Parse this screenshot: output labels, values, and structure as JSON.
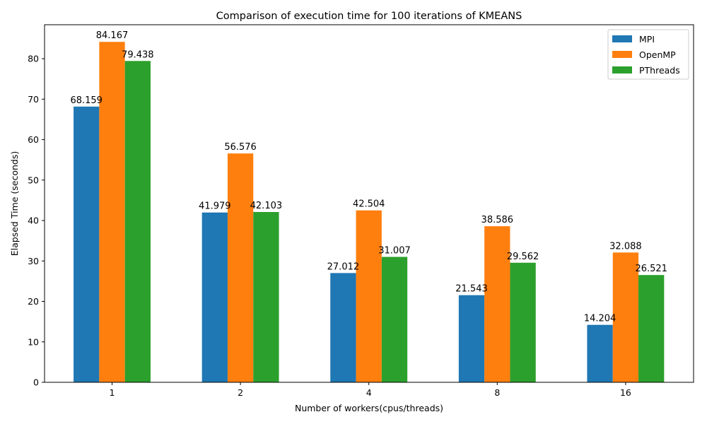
{
  "chart_data": {
    "type": "bar",
    "title": "Comparison of execution time for 100 iterations of KMEANS",
    "xlabel": "Number of workers(cpus/threads)",
    "ylabel": "Elapsed Time (seconds)",
    "categories": [
      "1",
      "2",
      "4",
      "8",
      "16"
    ],
    "ylim": [
      0,
      88.4
    ],
    "yticks": [
      0,
      10,
      20,
      30,
      40,
      50,
      60,
      70,
      80
    ],
    "grid": false,
    "legend_position": "top-right",
    "series": [
      {
        "name": "MPI",
        "color": "#1f77b4",
        "values": [
          68.159,
          41.979,
          27.012,
          21.543,
          14.204
        ]
      },
      {
        "name": "OpenMP",
        "color": "#ff7f0e",
        "values": [
          84.167,
          56.576,
          42.504,
          38.586,
          32.088
        ]
      },
      {
        "name": "PThreads",
        "color": "#2ca02c",
        "values": [
          79.438,
          42.103,
          31.007,
          29.562,
          26.521
        ]
      }
    ]
  }
}
